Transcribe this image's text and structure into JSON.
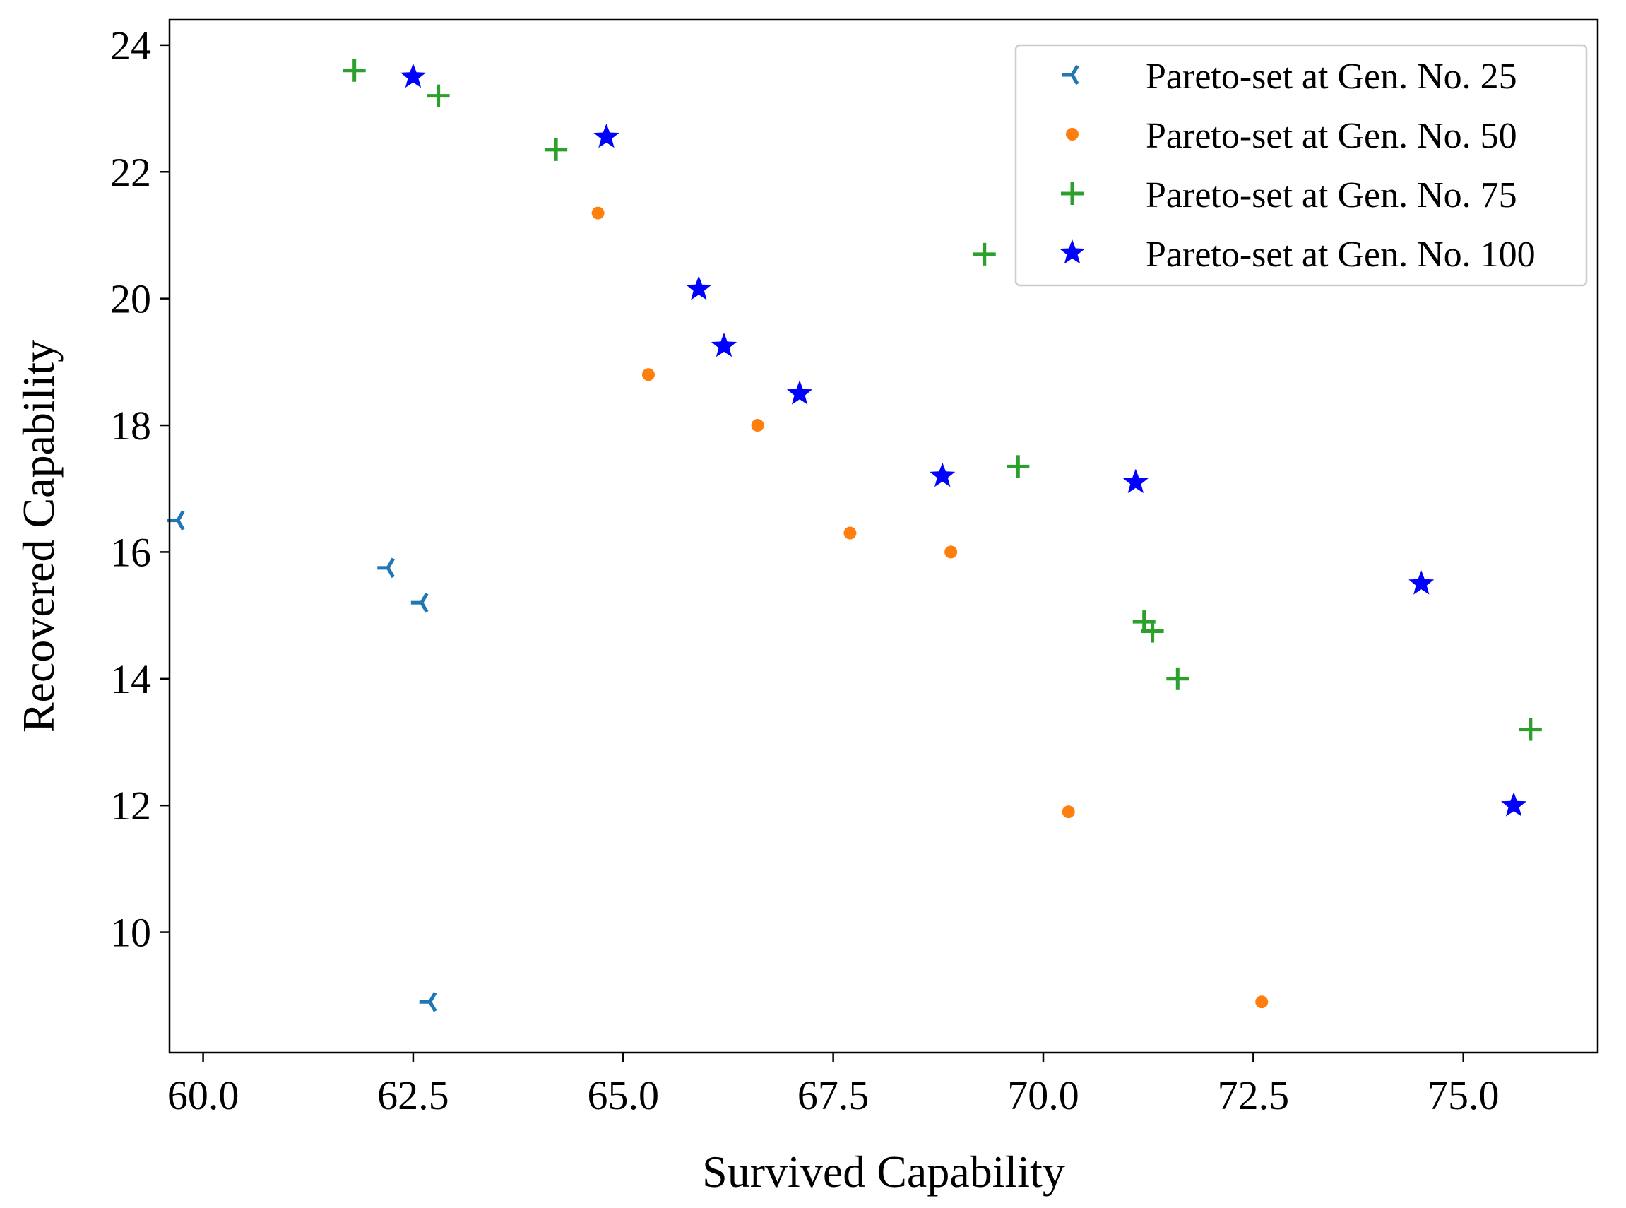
{
  "chart_data": {
    "type": "scatter",
    "title": "",
    "xlabel": "Survived Capability",
    "ylabel": "Recovered Capability",
    "xlim": [
      59.6,
      76.6
    ],
    "ylim": [
      8.1,
      24.4
    ],
    "xticks": [
      60.0,
      62.5,
      65.0,
      67.5,
      70.0,
      72.5,
      75.0
    ],
    "xtick_labels": [
      "60.0",
      "62.5",
      "65.0",
      "67.5",
      "70.0",
      "72.5",
      "75.0"
    ],
    "yticks": [
      10,
      12,
      14,
      16,
      18,
      20,
      22,
      24
    ],
    "ytick_labels": [
      "10",
      "12",
      "14",
      "16",
      "18",
      "20",
      "22",
      "24"
    ],
    "grid": false,
    "legend_position": "top-right",
    "series": [
      {
        "name": "Pareto-set at Gen. No. 25",
        "marker": "tri-left",
        "color": "#1f77b4",
        "points": [
          [
            59.7,
            16.5
          ],
          [
            62.2,
            15.75
          ],
          [
            62.6,
            15.2
          ],
          [
            62.7,
            8.9
          ]
        ]
      },
      {
        "name": "Pareto-set at Gen. No. 50",
        "marker": "circle",
        "color": "#ff7f0e",
        "points": [
          [
            64.7,
            21.35
          ],
          [
            65.3,
            18.8
          ],
          [
            66.6,
            18.0
          ],
          [
            67.7,
            16.3
          ],
          [
            68.9,
            16.0
          ],
          [
            70.3,
            11.9
          ],
          [
            72.6,
            8.9
          ]
        ]
      },
      {
        "name": "Pareto-set at Gen. No. 75",
        "marker": "plus",
        "color": "#2ca02c",
        "points": [
          [
            61.8,
            23.6
          ],
          [
            62.8,
            23.2
          ],
          [
            64.2,
            22.35
          ],
          [
            69.3,
            20.7
          ],
          [
            69.7,
            17.35
          ],
          [
            71.2,
            14.9
          ],
          [
            71.3,
            14.75
          ],
          [
            71.6,
            14.0
          ],
          [
            75.8,
            13.2
          ]
        ]
      },
      {
        "name": "Pareto-set at Gen. No. 100",
        "marker": "star",
        "color": "#0000ff",
        "points": [
          [
            62.5,
            23.5
          ],
          [
            64.8,
            22.55
          ],
          [
            65.9,
            20.15
          ],
          [
            66.2,
            19.25
          ],
          [
            67.1,
            18.5
          ],
          [
            68.8,
            17.2
          ],
          [
            71.1,
            17.1
          ],
          [
            74.5,
            15.5
          ],
          [
            75.6,
            12.0
          ]
        ]
      }
    ]
  }
}
